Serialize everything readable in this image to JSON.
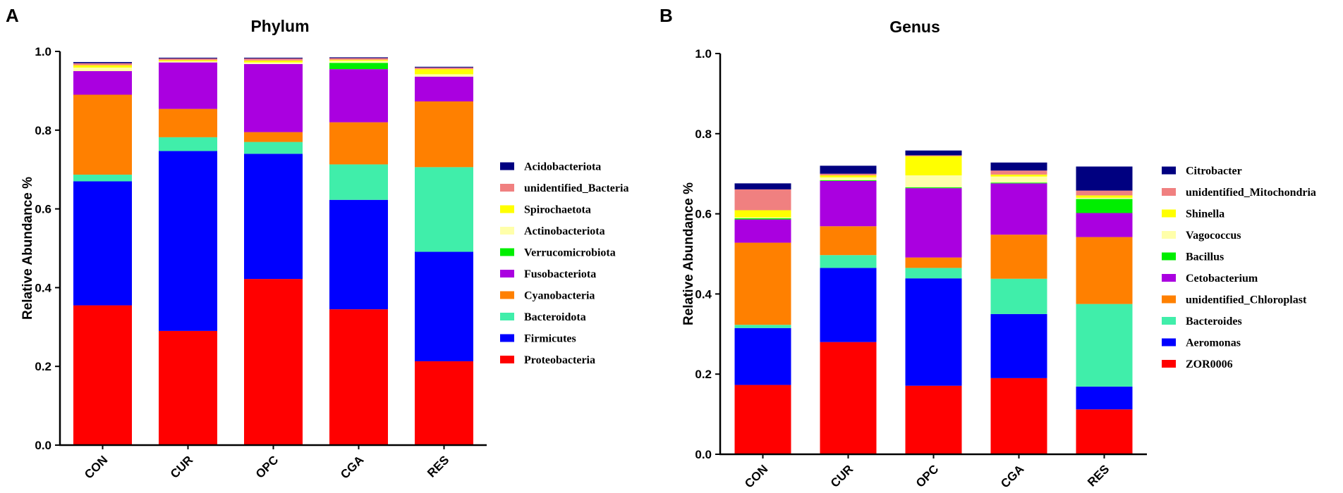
{
  "panels": {
    "A": {
      "letter": "A"
    },
    "B": {
      "letter": "B"
    }
  },
  "chart_data": [
    {
      "type": "bar",
      "stacked": true,
      "title": "Phylum",
      "xlabel": "",
      "ylabel": "Relative Abundance %",
      "ylim": [
        0,
        1.0
      ],
      "yticks": [
        "0.0",
        "0.2",
        "0.4",
        "0.6",
        "0.8",
        "1.0"
      ],
      "categories": [
        "CON",
        "CUR",
        "OPC",
        "CGA",
        "RES"
      ],
      "legend_position": "right",
      "series": [
        {
          "name": "Proteobacteria",
          "color": "#ff0000",
          "values": [
            0.355,
            0.29,
            0.422,
            0.345,
            0.213
          ]
        },
        {
          "name": "Firmicutes",
          "color": "#0000ff",
          "values": [
            0.315,
            0.457,
            0.318,
            0.278,
            0.278
          ]
        },
        {
          "name": "Bacteroidota",
          "color": "#40eeaa",
          "values": [
            0.017,
            0.035,
            0.03,
            0.09,
            0.215
          ]
        },
        {
          "name": "Cyanobacteria",
          "color": "#ff8000",
          "values": [
            0.203,
            0.072,
            0.025,
            0.107,
            0.167
          ]
        },
        {
          "name": "Fusobacteriota",
          "color": "#aa00e0",
          "values": [
            0.06,
            0.118,
            0.173,
            0.135,
            0.063
          ]
        },
        {
          "name": "Verrucomicrobiota",
          "color": "#00ee00",
          "values": [
            0.0,
            0.0,
            0.0,
            0.016,
            0.0
          ]
        },
        {
          "name": "Actinobacteriota",
          "color": "#ffffaa",
          "values": [
            0.009,
            0.003,
            0.004,
            0.005,
            0.006
          ]
        },
        {
          "name": "Spirochaetota",
          "color": "#ffff00",
          "values": [
            0.006,
            0.003,
            0.005,
            0.003,
            0.013
          ]
        },
        {
          "name": "unidentified_Bacteria",
          "color": "#f08080",
          "values": [
            0.005,
            0.004,
            0.005,
            0.004,
            0.004
          ]
        },
        {
          "name": "Acidobacteriota",
          "color": "#000080",
          "values": [
            0.003,
            0.002,
            0.002,
            0.002,
            0.002
          ]
        }
      ]
    },
    {
      "type": "bar",
      "stacked": true,
      "title": "Genus",
      "xlabel": "",
      "ylabel": "Relative Abundance %",
      "ylim": [
        0,
        1.0
      ],
      "yticks": [
        "0.0",
        "0.2",
        "0.4",
        "0.6",
        "0.8",
        "1.0"
      ],
      "categories": [
        "CON",
        "CUR",
        "OPC",
        "CGA",
        "RES"
      ],
      "legend_position": "right",
      "series": [
        {
          "name": "ZOR0006",
          "color": "#ff0000",
          "values": [
            0.173,
            0.28,
            0.171,
            0.19,
            0.112
          ]
        },
        {
          "name": "Aeromonas",
          "color": "#0000ff",
          "values": [
            0.142,
            0.185,
            0.268,
            0.16,
            0.057
          ]
        },
        {
          "name": "Bacteroides",
          "color": "#40eeaa",
          "values": [
            0.008,
            0.032,
            0.026,
            0.088,
            0.206
          ]
        },
        {
          "name": "unidentified_Chloroplast",
          "color": "#ff8000",
          "values": [
            0.205,
            0.072,
            0.026,
            0.11,
            0.167
          ]
        },
        {
          "name": "Cetobacterium",
          "color": "#aa00e0",
          "values": [
            0.058,
            0.113,
            0.173,
            0.128,
            0.06
          ]
        },
        {
          "name": "Bacillus",
          "color": "#00ee00",
          "values": [
            0.003,
            0.002,
            0.002,
            0.002,
            0.035
          ]
        },
        {
          "name": "Vagococcus",
          "color": "#ffffaa",
          "values": [
            0.002,
            0.007,
            0.03,
            0.015,
            0.003
          ]
        },
        {
          "name": "Shinella",
          "color": "#ffff00",
          "values": [
            0.018,
            0.005,
            0.048,
            0.005,
            0.006
          ]
        },
        {
          "name": "unidentified_Mitochondria",
          "color": "#f08080",
          "values": [
            0.052,
            0.004,
            0.002,
            0.01,
            0.012
          ]
        },
        {
          "name": "Citrobacter",
          "color": "#000080",
          "values": [
            0.015,
            0.02,
            0.012,
            0.02,
            0.06
          ]
        }
      ]
    }
  ]
}
